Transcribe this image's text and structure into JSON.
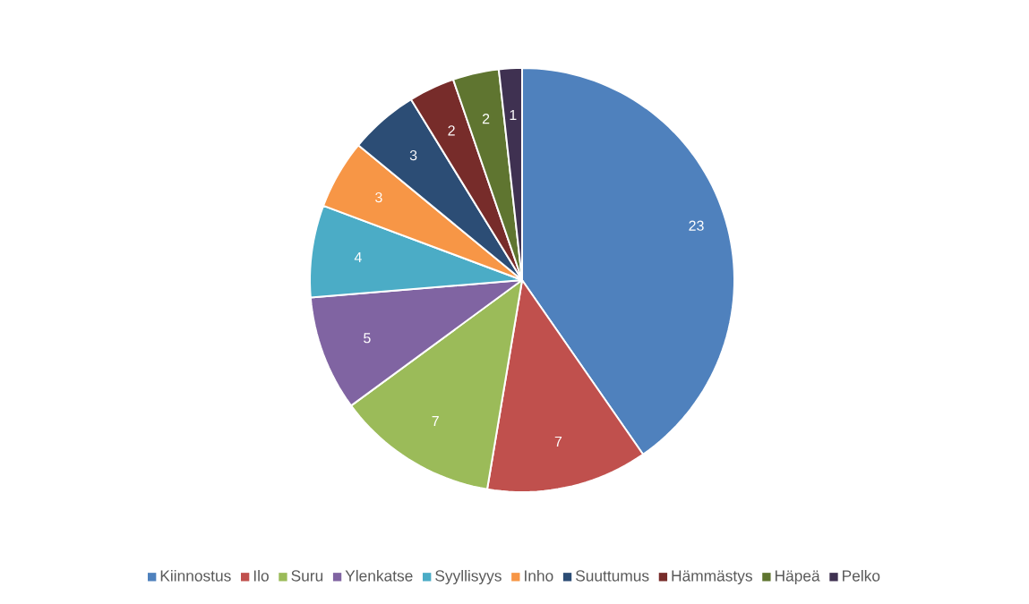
{
  "chart_data": {
    "type": "pie",
    "categories": [
      "Kiinnostus",
      "Ilo",
      "Suru",
      "Ylenkatse",
      "Syyllisyys",
      "Inho",
      "Suuttumus",
      "Hämmästys",
      "Häpeä",
      "Pelko"
    ],
    "values": [
      23,
      7,
      7,
      5,
      4,
      3,
      3,
      2,
      2,
      1
    ],
    "colors": [
      "#4f81bd",
      "#c0504d",
      "#9bbb59",
      "#8064a2",
      "#4bacc6",
      "#f79646",
      "#2c4d75",
      "#772c2a",
      "#5f7530",
      "#3f3151"
    ],
    "data_labels": true,
    "legend": "bottom"
  }
}
